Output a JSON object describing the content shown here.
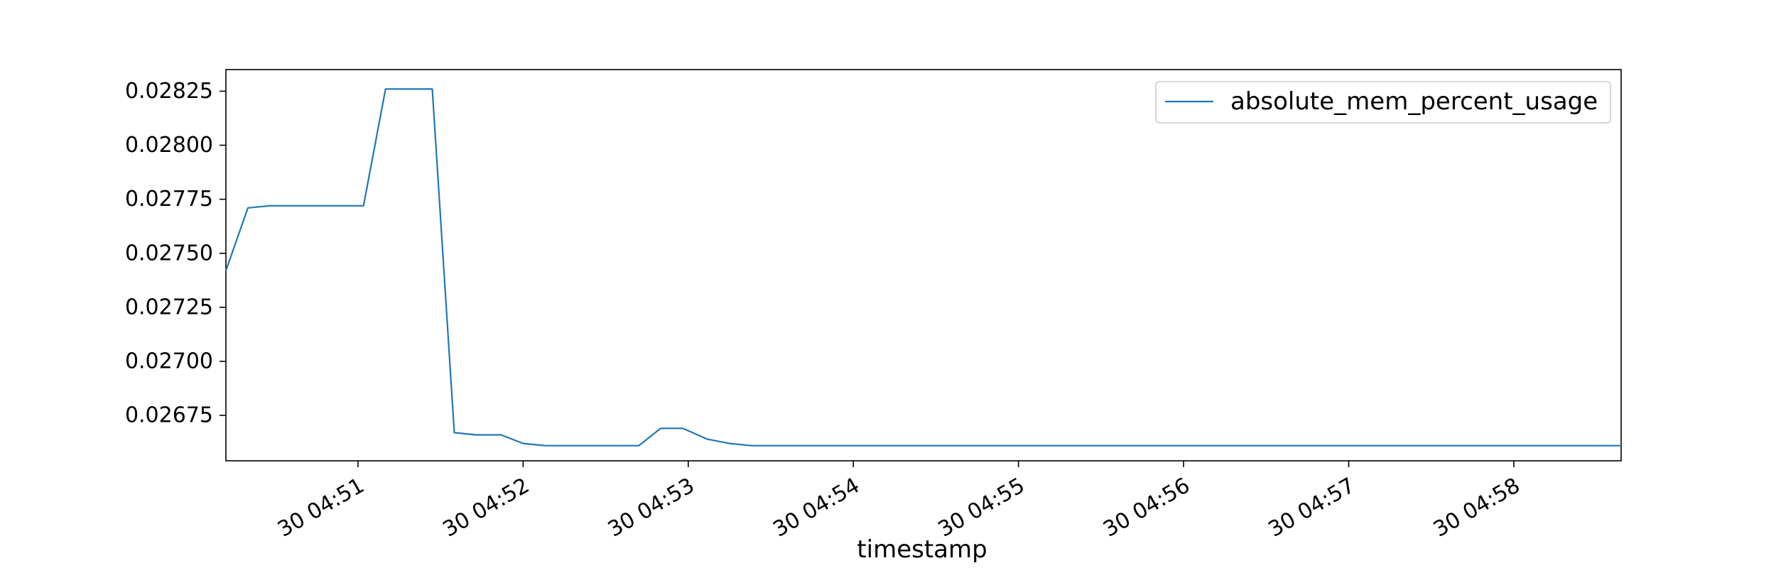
{
  "chart_data": {
    "type": "line",
    "title": "",
    "xlabel": "timestamp",
    "ylabel": "",
    "legend": {
      "position": "top-right",
      "entries": [
        "absolute_mem_percent_usage"
      ]
    },
    "grid": false,
    "x_range": [
      "04:50:12",
      "04:58:39"
    ],
    "ylim": [
      0.02654,
      0.02835
    ],
    "x_ticks": [
      {
        "time": "04:51:00",
        "label": "30 04:51"
      },
      {
        "time": "04:52:00",
        "label": "30 04:52"
      },
      {
        "time": "04:53:00",
        "label": "30 04:53"
      },
      {
        "time": "04:54:00",
        "label": "30 04:54"
      },
      {
        "time": "04:55:00",
        "label": "30 04:55"
      },
      {
        "time": "04:56:00",
        "label": "30 04:56"
      },
      {
        "time": "04:57:00",
        "label": "30 04:57"
      },
      {
        "time": "04:58:00",
        "label": "30 04:58"
      }
    ],
    "y_ticks": [
      {
        "value": 0.02675,
        "label": "0.02675"
      },
      {
        "value": 0.027,
        "label": "0.02700"
      },
      {
        "value": 0.02725,
        "label": "0.02725"
      },
      {
        "value": 0.0275,
        "label": "0.02750"
      },
      {
        "value": 0.02775,
        "label": "0.02775"
      },
      {
        "value": 0.028,
        "label": "0.02800"
      },
      {
        "value": 0.02825,
        "label": "0.02825"
      }
    ],
    "series": [
      {
        "name": "absolute_mem_percent_usage",
        "color": "#1f77b4",
        "points": [
          [
            "04:50:12",
            0.02742
          ],
          [
            "04:50:20",
            0.02771
          ],
          [
            "04:50:28",
            0.02772
          ],
          [
            "04:50:37",
            0.02772
          ],
          [
            "04:50:45",
            0.02772
          ],
          [
            "04:50:53",
            0.02772
          ],
          [
            "04:51:02",
            0.02772
          ],
          [
            "04:51:10",
            0.02826
          ],
          [
            "04:51:18",
            0.02826
          ],
          [
            "04:51:27",
            0.02826
          ],
          [
            "04:51:35",
            0.02667
          ],
          [
            "04:51:43",
            0.02666
          ],
          [
            "04:51:52",
            0.02666
          ],
          [
            "04:52:00",
            0.02662
          ],
          [
            "04:52:08",
            0.02661
          ],
          [
            "04:52:17",
            0.02661
          ],
          [
            "04:52:25",
            0.02661
          ],
          [
            "04:52:33",
            0.02661
          ],
          [
            "04:52:42",
            0.02661
          ],
          [
            "04:52:50",
            0.02669
          ],
          [
            "04:52:58",
            0.02669
          ],
          [
            "04:53:07",
            0.02664
          ],
          [
            "04:53:15",
            0.02662
          ],
          [
            "04:53:23",
            0.02661
          ],
          [
            "04:53:32",
            0.02661
          ],
          [
            "04:54:00",
            0.02661
          ],
          [
            "04:55:00",
            0.02661
          ],
          [
            "04:56:00",
            0.02661
          ],
          [
            "04:57:00",
            0.02661
          ],
          [
            "04:58:00",
            0.02661
          ],
          [
            "04:58:39",
            0.02661
          ]
        ]
      }
    ]
  }
}
